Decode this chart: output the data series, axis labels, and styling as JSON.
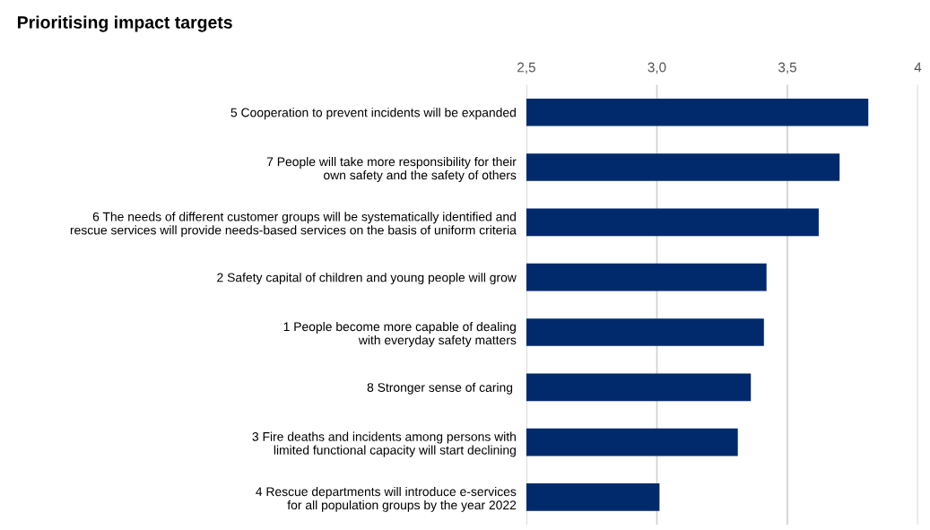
{
  "chart_data": {
    "type": "bar",
    "orientation": "horizontal",
    "title": "Prioritising impact targets",
    "categories": [
      "5 Cooperation to prevent incidents will be expanded",
      "7 People will take more responsibility for their\nown safety and the safety of others",
      "6 The needs of different customer groups will be systematically identified and\nrescue services will provide needs-based services on the basis of uniform criteria",
      "2 Safety capital of children and young people will grow",
      "1 People become more capable of dealing\nwith everyday safety matters",
      "8 Stronger sense of caring ",
      "3 Fire deaths and incidents among persons with\nlimited functional capacity will start declining",
      "4 Rescue departments will introduce e-services\nfor all population groups by the year 2022"
    ],
    "values": [
      3.81,
      3.7,
      3.62,
      3.42,
      3.41,
      3.36,
      3.31,
      3.01
    ],
    "color": "#002a6c",
    "xlim": [
      2.5,
      4
    ],
    "xticks": [
      {
        "value": 2.5,
        "label": "2,5"
      },
      {
        "value": 3.0,
        "label": "3,0"
      },
      {
        "value": 3.5,
        "label": "3,5"
      },
      4
    ],
    "grid": "x"
  }
}
